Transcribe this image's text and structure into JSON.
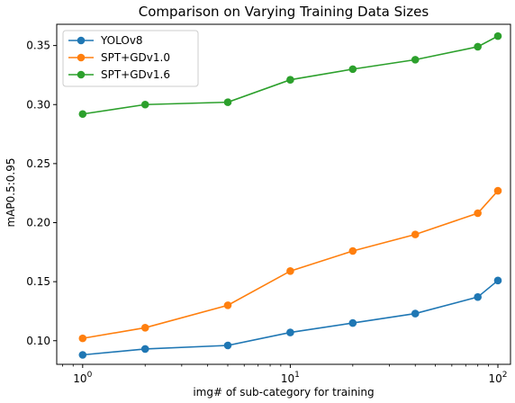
{
  "chart_data": {
    "type": "line",
    "title": "Comparison on Varying Training Data Sizes",
    "xlabel": "img# of sub-category for training",
    "ylabel": "mAP0.5:0.95",
    "xscale": "log",
    "xlim": [
      0.75,
      115
    ],
    "ylim": [
      0.08,
      0.368
    ],
    "x_ticks": [
      1,
      10,
      100
    ],
    "x_tick_labels": [
      {
        "base": "10",
        "exp": "0"
      },
      {
        "base": "10",
        "exp": "1"
      },
      {
        "base": "10",
        "exp": "2"
      }
    ],
    "y_ticks": [
      0.1,
      0.15,
      0.2,
      0.25,
      0.3,
      0.35
    ],
    "y_tick_labels": [
      "0.10",
      "0.15",
      "0.20",
      "0.25",
      "0.30",
      "0.35"
    ],
    "grid": false,
    "legend_position": "top-left",
    "x": [
      1,
      2,
      5,
      10,
      20,
      40,
      80,
      100
    ],
    "series": [
      {
        "name": "YOLOv8",
        "color": "#1f77b4",
        "values": [
          0.088,
          0.093,
          0.096,
          0.107,
          0.115,
          0.123,
          0.137,
          0.151
        ]
      },
      {
        "name": "SPT+GDv1.0",
        "color": "#ff7f0e",
        "values": [
          0.102,
          0.111,
          0.13,
          0.159,
          0.176,
          0.19,
          0.208,
          0.227
        ]
      },
      {
        "name": "SPT+GDv1.6",
        "color": "#2ca02c",
        "values": [
          0.292,
          0.3,
          0.302,
          0.321,
          0.33,
          0.338,
          0.349,
          0.358
        ]
      }
    ]
  }
}
